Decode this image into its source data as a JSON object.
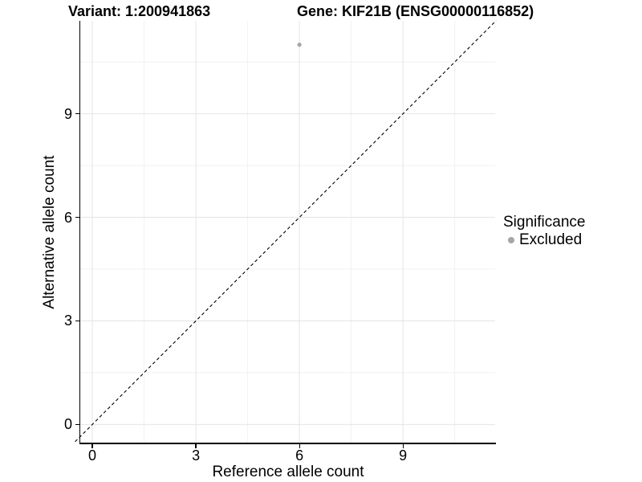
{
  "chart_data": {
    "type": "scatter",
    "titles": [
      "Variant: 1:200941863",
      "Gene: KIF21B (ENSG00000116852)"
    ],
    "xlabel": "Reference allele count",
    "ylabel": "Alternative allele count",
    "points": [
      {
        "x": 6,
        "y": 11,
        "significance": "Excluded"
      }
    ],
    "reference_line": {
      "type": "identity",
      "slope": 1,
      "intercept": 0,
      "style": "dashed",
      "color": "#000000"
    },
    "x_ticks": [
      0,
      3,
      6,
      9
    ],
    "y_ticks": [
      0,
      3,
      6,
      9
    ],
    "x_minor_ticks": [
      1.5,
      4.5,
      7.5,
      10.5
    ],
    "y_minor_ticks": [
      1.5,
      4.5,
      7.5,
      10.5
    ],
    "xlim": [
      -0.35,
      11.67
    ],
    "ylim": [
      -0.55,
      11.69
    ],
    "grid": true,
    "legend": {
      "title": "Significance",
      "position": "right",
      "items": [
        {
          "label": "Excluded",
          "color": "#a6a6a6"
        }
      ]
    },
    "colors": {
      "point": "#a6a6a6",
      "grid_major": "#e4e4e4",
      "grid_minor": "#f1f1f1",
      "axis": "#000000",
      "background": "#ffffff"
    }
  }
}
